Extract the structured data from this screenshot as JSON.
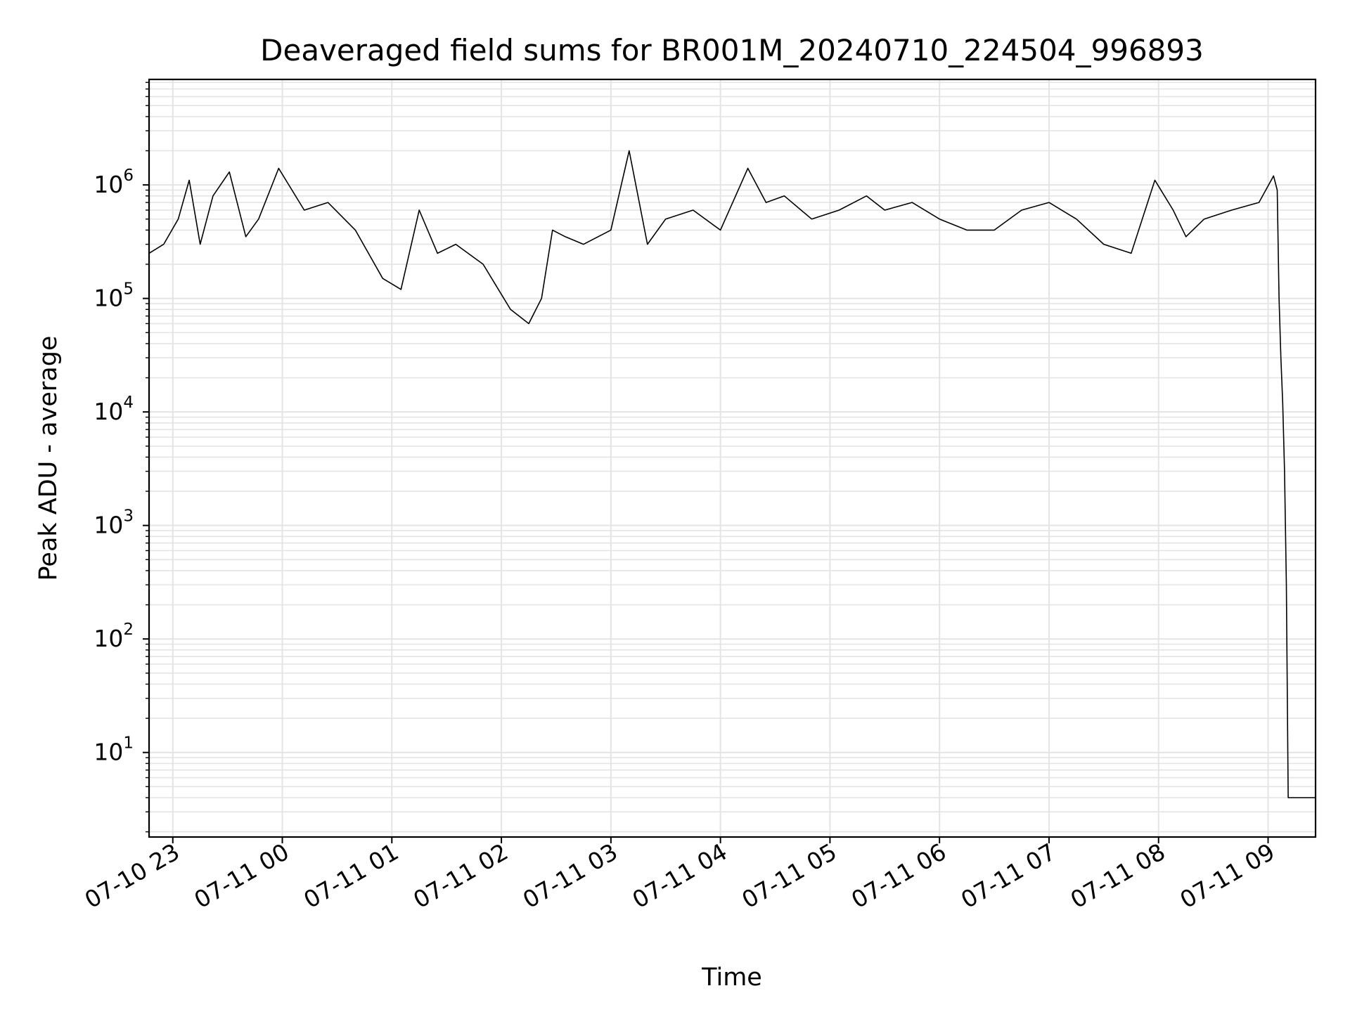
{
  "chart_data": {
    "type": "line",
    "title": "Deaveraged field sums for BR001M_20240710_224504_996893",
    "xlabel": "Time",
    "ylabel": "Peak ADU - average",
    "y_scale": "log",
    "grid": true,
    "line_color": "#000000",
    "x_tick_labels": [
      "07-10 23",
      "07-11 00",
      "07-11 01",
      "07-11 02",
      "07-11 03",
      "07-11 04",
      "07-11 05",
      "07-11 06",
      "07-11 07",
      "07-11 08",
      "07-11 09"
    ],
    "y_tick_labels": [
      {
        "base": "10",
        "exp": "1"
      },
      {
        "base": "10",
        "exp": "2"
      },
      {
        "base": "10",
        "exp": "3"
      },
      {
        "base": "10",
        "exp": "4"
      },
      {
        "base": "10",
        "exp": "5"
      },
      {
        "base": "10",
        "exp": "6"
      }
    ],
    "xlim": [
      "2024-07-10 22:47",
      "2024-07-11 09:26"
    ],
    "ylim": [
      1.8,
      8500000
    ],
    "series": [
      {
        "x": [
          "2024-07-10 22:47",
          "2024-07-10 22:55",
          "2024-07-10 23:03",
          "2024-07-10 23:09",
          "2024-07-10 23:15",
          "2024-07-10 23:22",
          "2024-07-10 23:31",
          "2024-07-10 23:40",
          "2024-07-10 23:47",
          "2024-07-10 23:58",
          "2024-07-11 00:12",
          "2024-07-11 00:25",
          "2024-07-11 00:40",
          "2024-07-11 00:55",
          "2024-07-11 01:05",
          "2024-07-11 01:15",
          "2024-07-11 01:25",
          "2024-07-11 01:35",
          "2024-07-11 01:50",
          "2024-07-11 02:05",
          "2024-07-11 02:15",
          "2024-07-11 02:22",
          "2024-07-11 02:28",
          "2024-07-11 02:35",
          "2024-07-11 02:45",
          "2024-07-11 03:00",
          "2024-07-11 03:10",
          "2024-07-11 03:20",
          "2024-07-11 03:30",
          "2024-07-11 03:45",
          "2024-07-11 04:00",
          "2024-07-11 04:15",
          "2024-07-11 04:25",
          "2024-07-11 04:35",
          "2024-07-11 04:50",
          "2024-07-11 05:05",
          "2024-07-11 05:20",
          "2024-07-11 05:30",
          "2024-07-11 05:45",
          "2024-07-11 06:00",
          "2024-07-11 06:15",
          "2024-07-11 06:30",
          "2024-07-11 06:45",
          "2024-07-11 07:00",
          "2024-07-11 07:15",
          "2024-07-11 07:30",
          "2024-07-11 07:45",
          "2024-07-11 07:58",
          "2024-07-11 08:08",
          "2024-07-11 08:15",
          "2024-07-11 08:25",
          "2024-07-11 08:40",
          "2024-07-11 08:55",
          "2024-07-11 09:03",
          "2024-07-11 09:05",
          "2024-07-11 09:06",
          "2024-07-11 09:07",
          "2024-07-11 09:08",
          "2024-07-11 09:09",
          "2024-07-11 09:10",
          "2024-07-11 09:11",
          "2024-07-11 09:12",
          "2024-07-11 09:14",
          "2024-07-11 09:20",
          "2024-07-11 09:26"
        ],
        "y": [
          250000,
          300000,
          500000,
          1100000,
          300000,
          800000,
          1300000,
          350000,
          500000,
          1400000,
          600000,
          700000,
          400000,
          150000,
          120000,
          600000,
          250000,
          300000,
          200000,
          80000,
          60000,
          100000,
          400000,
          350000,
          300000,
          400000,
          2000000,
          300000,
          500000,
          600000,
          400000,
          1400000,
          700000,
          800000,
          500000,
          600000,
          800000,
          600000,
          700000,
          500000,
          400000,
          400000,
          600000,
          700000,
          500000,
          300000,
          250000,
          1100000,
          600000,
          350000,
          500000,
          600000,
          700000,
          1200000,
          900000,
          100000,
          30000,
          12000,
          3000,
          300,
          4,
          4,
          4,
          4,
          4
        ]
      }
    ]
  }
}
